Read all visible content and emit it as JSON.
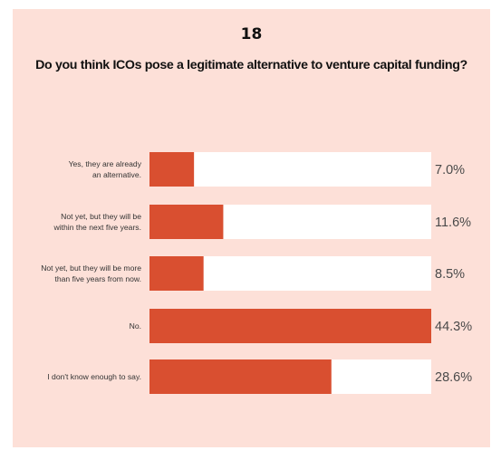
{
  "chart_data": {
    "type": "bar",
    "orientation": "horizontal",
    "number": "18",
    "title": "Do you think ICOs pose a legitimate alternative to venture capital funding?",
    "categories": [
      [
        "Yes, they are already",
        "an alternative."
      ],
      [
        "Not yet, but they will be",
        "within the next five years."
      ],
      [
        "Not yet, but they will be more",
        "than five years from now."
      ],
      [
        "No."
      ],
      [
        "I don't know enough to say."
      ]
    ],
    "values": [
      7.0,
      11.6,
      8.5,
      44.3,
      28.6
    ],
    "value_labels": [
      "7.0%",
      "11.6%",
      "8.5%",
      "44.3%",
      "28.6%"
    ],
    "xlim": [
      0,
      44.3
    ],
    "grid": false,
    "legend": "none"
  },
  "colors": {
    "panel_background": "#fde0d8",
    "bar_fill": "#d94f30",
    "bar_track": "#ffffff",
    "title_text": "#111111",
    "value_text": "#4a4a4a",
    "category_text": "#333333"
  }
}
